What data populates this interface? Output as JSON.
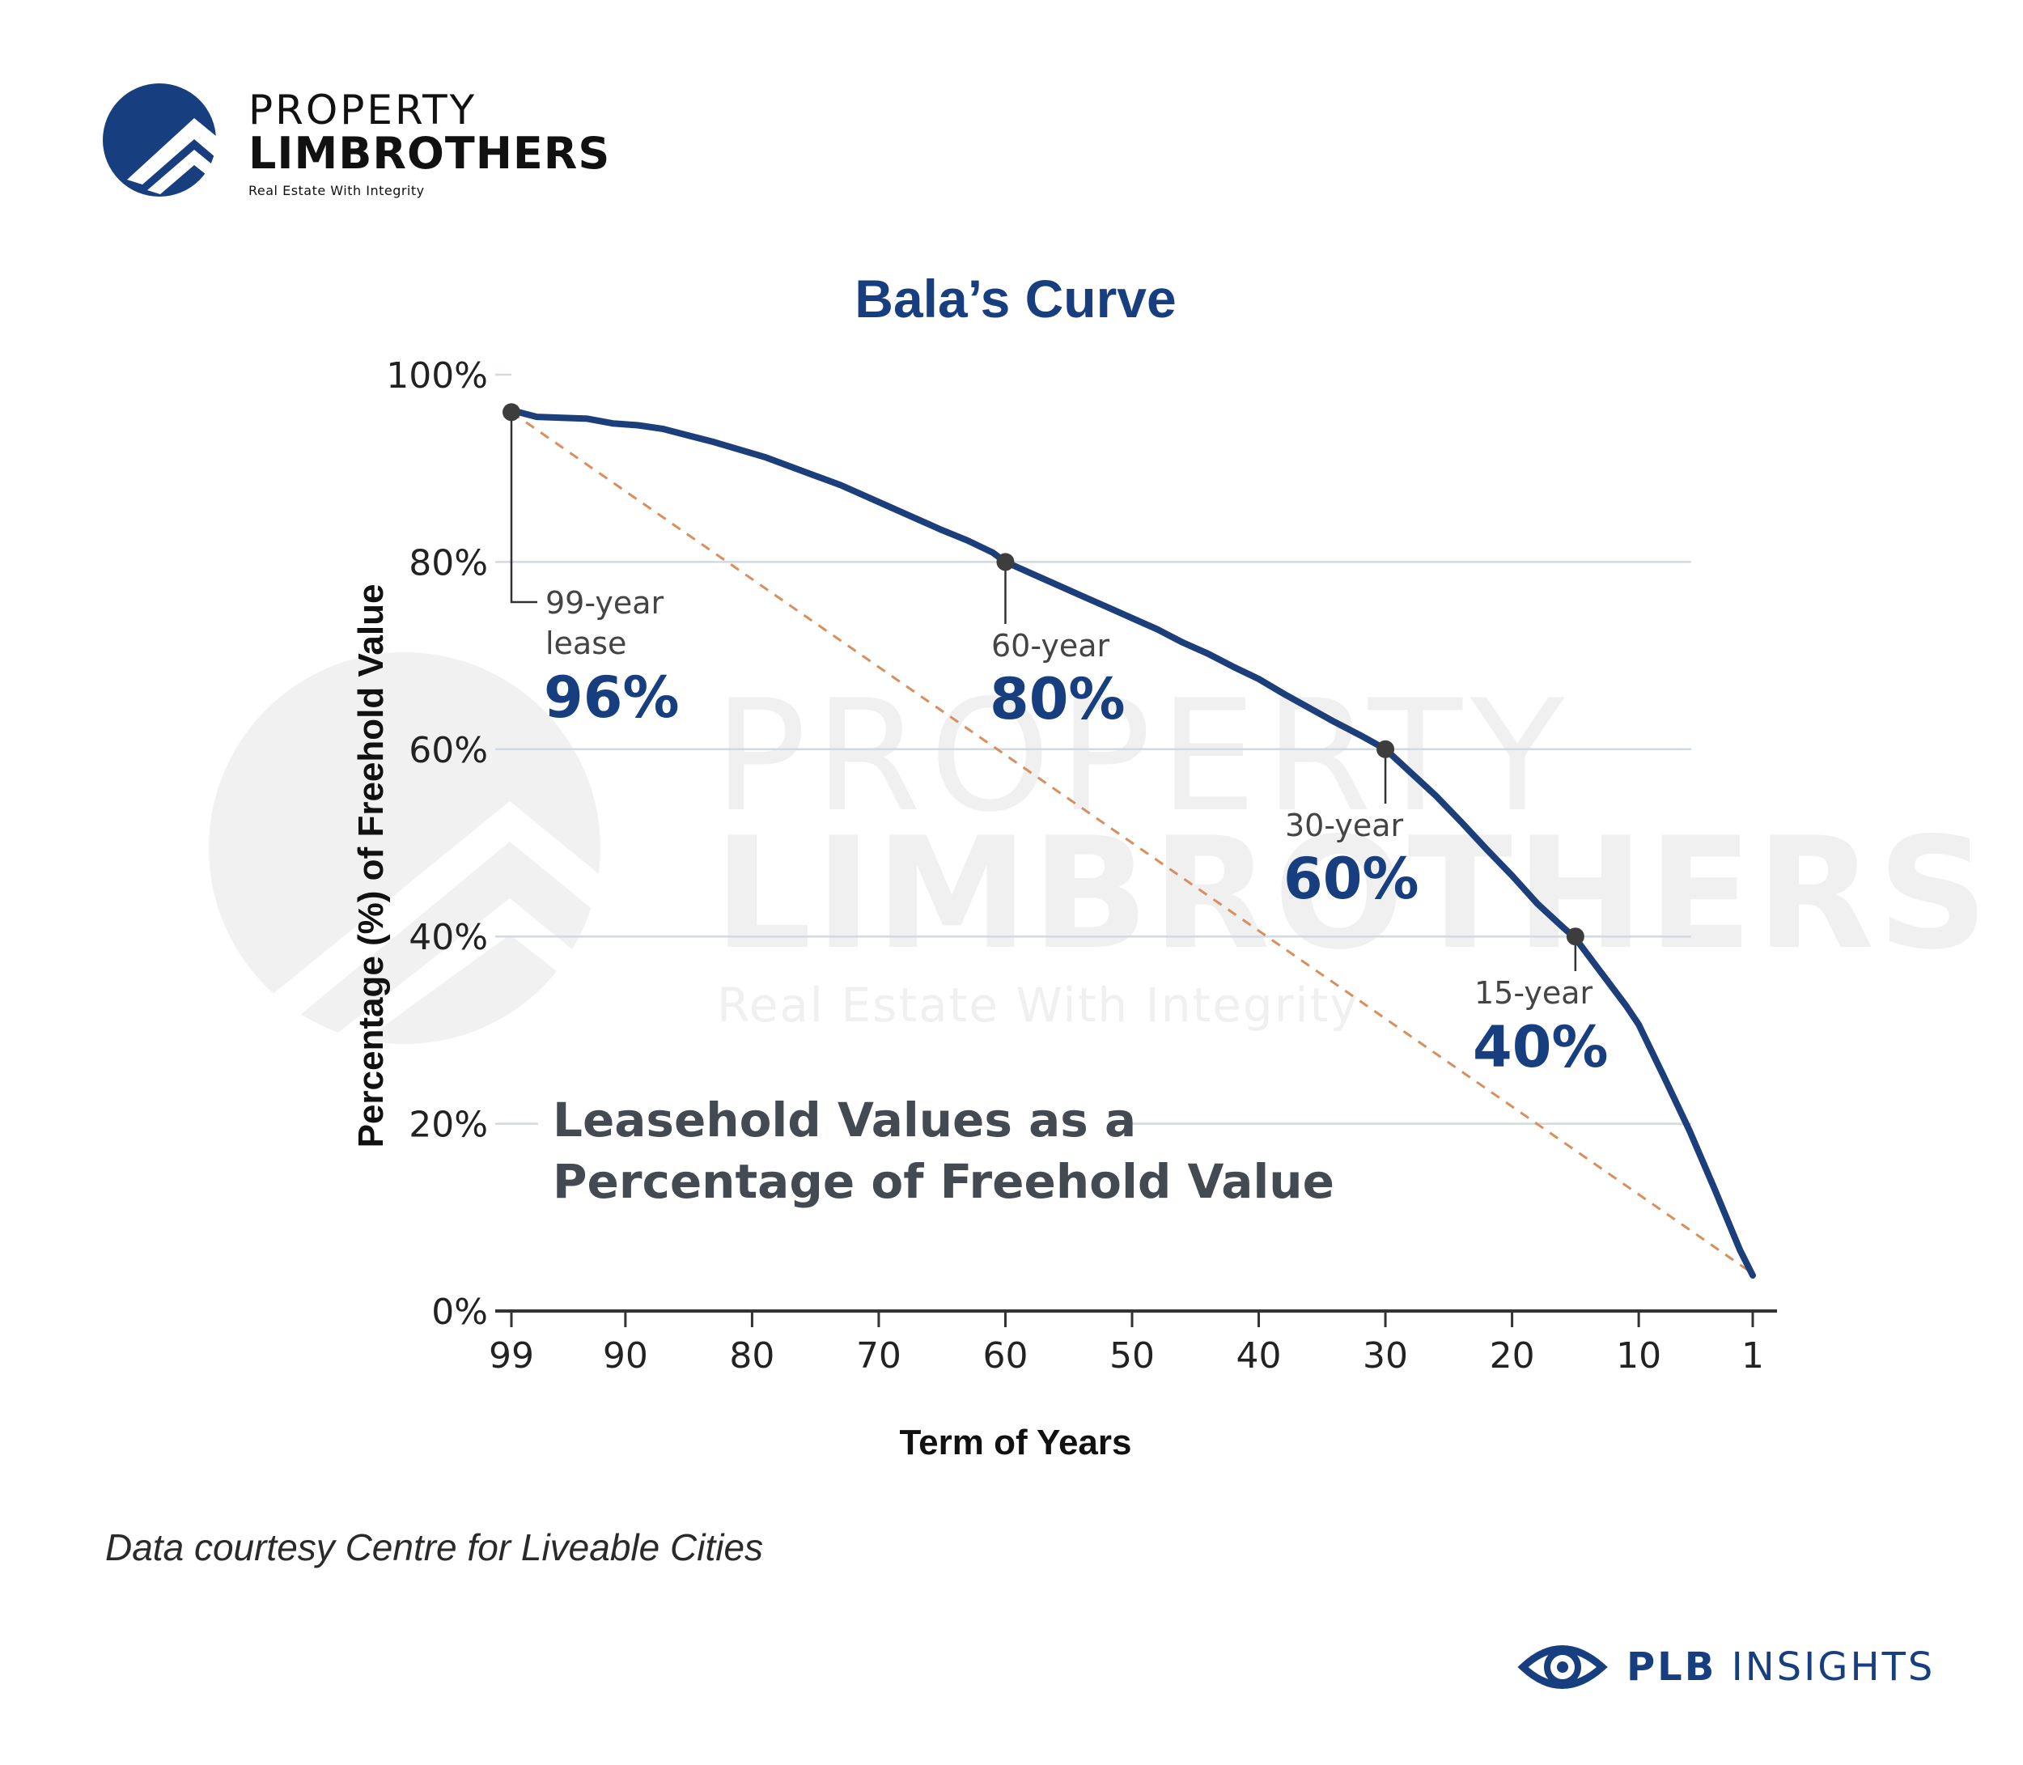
{
  "brand": {
    "line1": "PROPERTY",
    "line2": "LIMBROTHERS",
    "tagline": "Real Estate With Integrity",
    "watermark_line1": "PROPERTY",
    "watermark_line2": "LIMBROTHERS",
    "watermark_tagline": "Real Estate With Integrity",
    "color_primary": "#173f80",
    "color_curve": "#1c3f7c",
    "color_dashed": "#d98e5e"
  },
  "footer": {
    "source": "Data courtesy Centre for Liveable Cities",
    "insights_bold": "PLB",
    "insights_rest": " INSIGHTS"
  },
  "chart_data": {
    "type": "line",
    "title": "Bala’s Curve",
    "xlabel": "Term of Years",
    "ylabel": "Percentage (%) of Freehold Value",
    "chart_caption_line1": "Leasehold Values as a",
    "chart_caption_line2": "Percentage of Freehold Value",
    "x_reversed": true,
    "xlim": [
      99,
      1
    ],
    "ylim": [
      0,
      100
    ],
    "x_ticks": [
      99,
      90,
      80,
      70,
      60,
      50,
      40,
      30,
      20,
      10,
      1
    ],
    "x_tick_labels": [
      "99",
      "90",
      "80",
      "70",
      "60",
      "50",
      "40",
      "30",
      "20",
      "10",
      "1"
    ],
    "y_ticks": [
      0,
      20,
      40,
      60,
      80,
      100
    ],
    "y_tick_labels": [
      "0%",
      "20%",
      "40%",
      "60%",
      "80%",
      "100%"
    ],
    "gridlines_y": [
      20,
      40,
      60,
      80,
      100
    ],
    "series": [
      {
        "x": [
          99,
          97,
          95,
          93,
          91,
          89,
          87,
          85,
          83,
          81,
          79,
          77,
          75,
          73,
          71,
          69,
          67,
          65,
          63,
          61,
          60,
          58,
          56,
          54,
          52,
          50,
          48,
          46,
          44,
          42,
          40,
          38,
          36,
          34,
          32,
          30,
          28,
          26,
          24,
          22,
          20,
          18,
          16,
          15,
          13,
          11,
          10,
          8,
          6,
          4,
          2,
          1
        ],
        "values": [
          96.2,
          95.5,
          95.4,
          95.3,
          94.8,
          94.6,
          94.2,
          93.5,
          92.8,
          92.0,
          91.2,
          90.2,
          89.2,
          88.2,
          87.0,
          85.8,
          84.6,
          83.4,
          82.3,
          81.0,
          80.0,
          78.8,
          77.6,
          76.4,
          75.2,
          74.0,
          72.8,
          71.4,
          70.2,
          68.8,
          67.5,
          65.9,
          64.4,
          62.9,
          61.5,
          60.0,
          57.5,
          55.0,
          52.2,
          49.3,
          46.5,
          43.5,
          41.0,
          39.8,
          36.2,
          32.6,
          30.6,
          25.0,
          19.3,
          13.0,
          6.5,
          3.8
        ]
      },
      {
        "x": [
          99,
          1
        ],
        "values": [
          96,
          4
        ],
        "style": "dashed"
      }
    ],
    "annotations": [
      {
        "x": 99,
        "y": 96,
        "label_line1": "99-year",
        "label_line2": "lease",
        "value": "96%"
      },
      {
        "x": 60,
        "y": 80,
        "label_line1": "60-year",
        "value": "80%"
      },
      {
        "x": 30,
        "y": 60,
        "label_line1": "30-year",
        "value": "60%"
      },
      {
        "x": 15,
        "y": 40,
        "label_line1": "15-year",
        "value": "40%"
      }
    ]
  }
}
